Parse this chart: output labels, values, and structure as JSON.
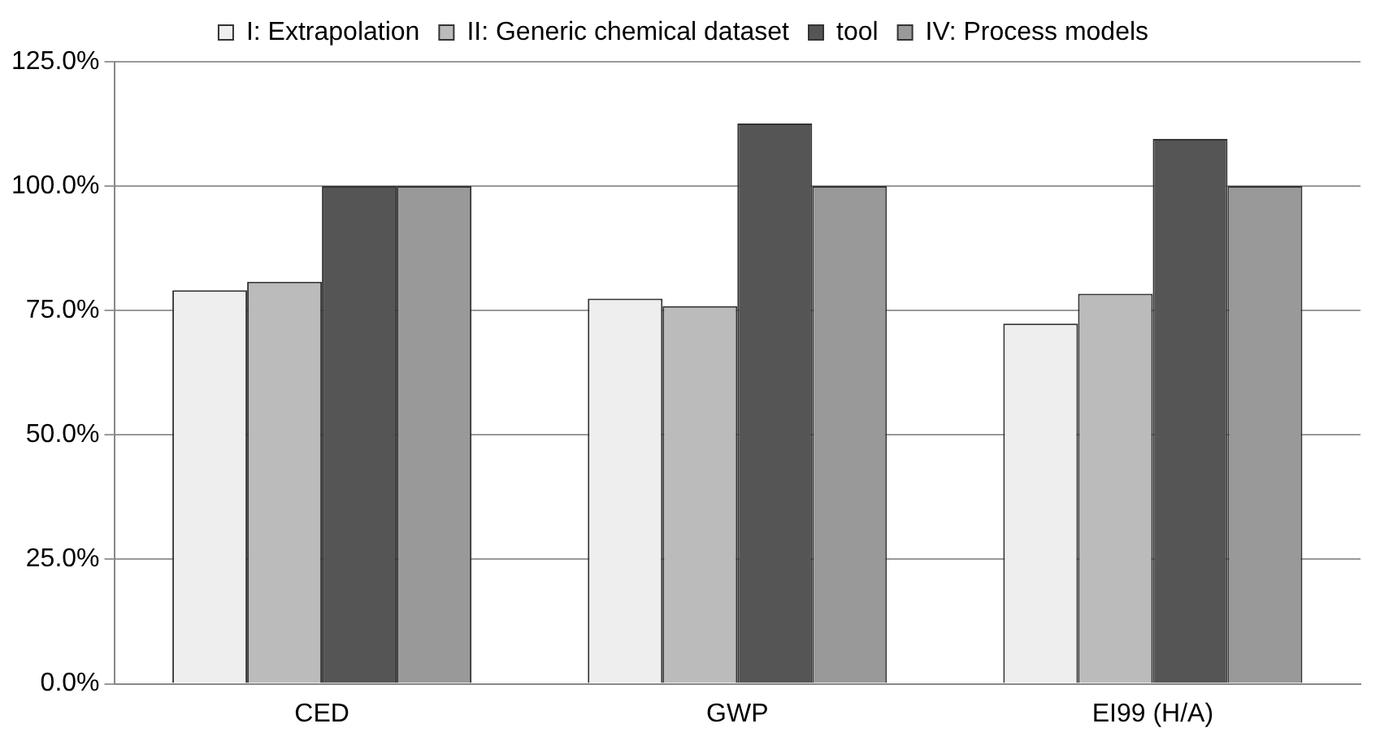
{
  "chart_data": {
    "type": "bar",
    "categories": [
      "CED",
      "GWP",
      "EI99 (H/A)"
    ],
    "series": [
      {
        "name": "I: Extrapolation",
        "color": "#eeeeee",
        "values": [
          79.1,
          77.4,
          72.4
        ]
      },
      {
        "name": "II: Generic chemical dataset",
        "color": "#bbbbbb",
        "values": [
          80.8,
          75.9,
          78.4
        ]
      },
      {
        "name": "tool",
        "color": "#555555",
        "values": [
          100,
          112.6,
          109.5
        ]
      },
      {
        "name": "IV: Process models",
        "color": "#999999",
        "values": [
          100,
          100,
          100
        ]
      }
    ],
    "ylim": [
      0,
      125
    ],
    "yticks": [
      {
        "value": 0,
        "label": "0.0%"
      },
      {
        "value": 25,
        "label": "25.0%"
      },
      {
        "value": 50,
        "label": "50.0%"
      },
      {
        "value": 75,
        "label": "75.0%"
      },
      {
        "value": 100,
        "label": "100.0%"
      },
      {
        "value": 125,
        "label": "125.0%"
      }
    ],
    "grid": "y",
    "legend": "top"
  }
}
